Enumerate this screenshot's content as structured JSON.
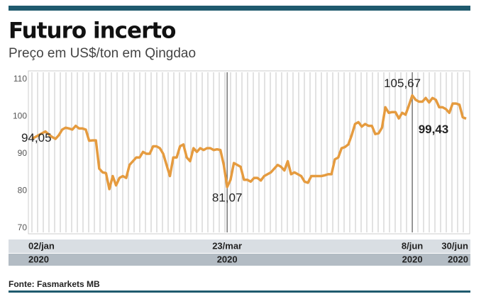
{
  "chart_data": {
    "type": "line",
    "title": "Futuro incerto",
    "subtitle": "Preço em US$/ton em Qingdao",
    "source": "Fonte: Fasmarkets MB",
    "categories": [
      "02/jan",
      null,
      null,
      null,
      null,
      null,
      null,
      null,
      null,
      null,
      null,
      null,
      null,
      null,
      null,
      null,
      null,
      null,
      null,
      null,
      null,
      null,
      null,
      null,
      null,
      null,
      null,
      null,
      null,
      null,
      null,
      null,
      null,
      null,
      null,
      null,
      null,
      null,
      null,
      null,
      null,
      null,
      null,
      null,
      null,
      null,
      null,
      null,
      null,
      null,
      null,
      null,
      null,
      null,
      null,
      null,
      null,
      null,
      "23/mar",
      null,
      null,
      null,
      null,
      null,
      null,
      null,
      null,
      null,
      null,
      null,
      null,
      null,
      null,
      null,
      null,
      null,
      null,
      null,
      null,
      null,
      null,
      null,
      null,
      null,
      null,
      null,
      null,
      null,
      null,
      null,
      null,
      null,
      null,
      null,
      null,
      null,
      null,
      null,
      null,
      null,
      null,
      null,
      null,
      null,
      null,
      null,
      null,
      null,
      null,
      null,
      null,
      null,
      null,
      "8/jun",
      null,
      null,
      null,
      null,
      null,
      null,
      null,
      null,
      null,
      null,
      null,
      null,
      null,
      null,
      null,
      "30/jun"
    ],
    "x_year_labels": [
      "2020",
      "2020",
      "2020",
      "2020"
    ],
    "series": [
      {
        "color": "#e59b3f",
        "values": [
          94.05,
          94.5,
          95,
          95.5,
          96,
          95.2,
          94.5,
          94,
          95,
          96.5,
          97,
          96.8,
          96.5,
          97.5,
          96.8,
          96.8,
          96.5,
          93.5,
          93.6,
          93.6,
          86,
          85,
          84.8,
          80.5,
          84,
          81.5,
          83.5,
          84,
          83.5,
          87,
          88,
          89,
          89,
          90.5,
          90,
          90,
          92,
          92,
          91.5,
          90,
          87,
          84,
          89,
          89,
          92,
          92.5,
          89,
          88,
          91.5,
          90.5,
          91.5,
          91,
          91.5,
          91.5,
          91,
          91.2,
          91,
          87,
          81.07,
          83,
          87.5,
          87,
          86.5,
          83,
          83,
          82.5,
          83.5,
          83.5,
          82.8,
          84,
          84.5,
          85,
          86,
          87,
          86.5,
          85.5,
          88,
          84.5,
          85,
          84.5,
          84,
          82.5,
          82.2,
          84,
          84,
          84,
          84,
          84.2,
          84.5,
          84.5,
          88.5,
          89,
          91.5,
          91.8,
          92.5,
          95,
          98,
          98.5,
          97.3,
          98,
          97.5,
          97.5,
          95.3,
          95.5,
          97,
          102.5,
          101,
          101.2,
          101.2,
          99.5,
          101,
          100.5,
          103,
          105.67,
          104.5,
          104,
          104,
          105,
          103.8,
          105,
          104.5,
          102.5,
          102.5,
          102,
          101,
          103.5,
          103.5,
          103.2,
          99.8,
          99.43
        ],
        "value_labels": [
          "94,05",
          null,
          null,
          null,
          null,
          null,
          null,
          null,
          null,
          null,
          null,
          null,
          null,
          null,
          null,
          null,
          null,
          null,
          null,
          null,
          null,
          null,
          null,
          null,
          null,
          null,
          null,
          null,
          null,
          null,
          null,
          null,
          null,
          null,
          null,
          null,
          null,
          null,
          null,
          null,
          null,
          null,
          null,
          null,
          null,
          null,
          null,
          null,
          null,
          null,
          null,
          null,
          null,
          null,
          null,
          null,
          null,
          null,
          "81,07",
          null,
          null,
          null,
          null,
          null,
          null,
          null,
          null,
          null,
          null,
          null,
          null,
          null,
          null,
          null,
          null,
          null,
          null,
          null,
          null,
          null,
          null,
          null,
          null,
          null,
          null,
          null,
          null,
          null,
          null,
          null,
          null,
          null,
          null,
          null,
          null,
          null,
          null,
          null,
          null,
          null,
          null,
          null,
          null,
          null,
          null,
          null,
          null,
          null,
          null,
          null,
          null,
          null,
          null,
          "105,67",
          null,
          null,
          null,
          null,
          null,
          null,
          null,
          null,
          null,
          null,
          null,
          null,
          null,
          null,
          null,
          "99,43"
        ]
      }
    ],
    "ylim": [
      70,
      110
    ],
    "yticks": [
      70,
      80,
      90,
      100,
      110
    ]
  }
}
